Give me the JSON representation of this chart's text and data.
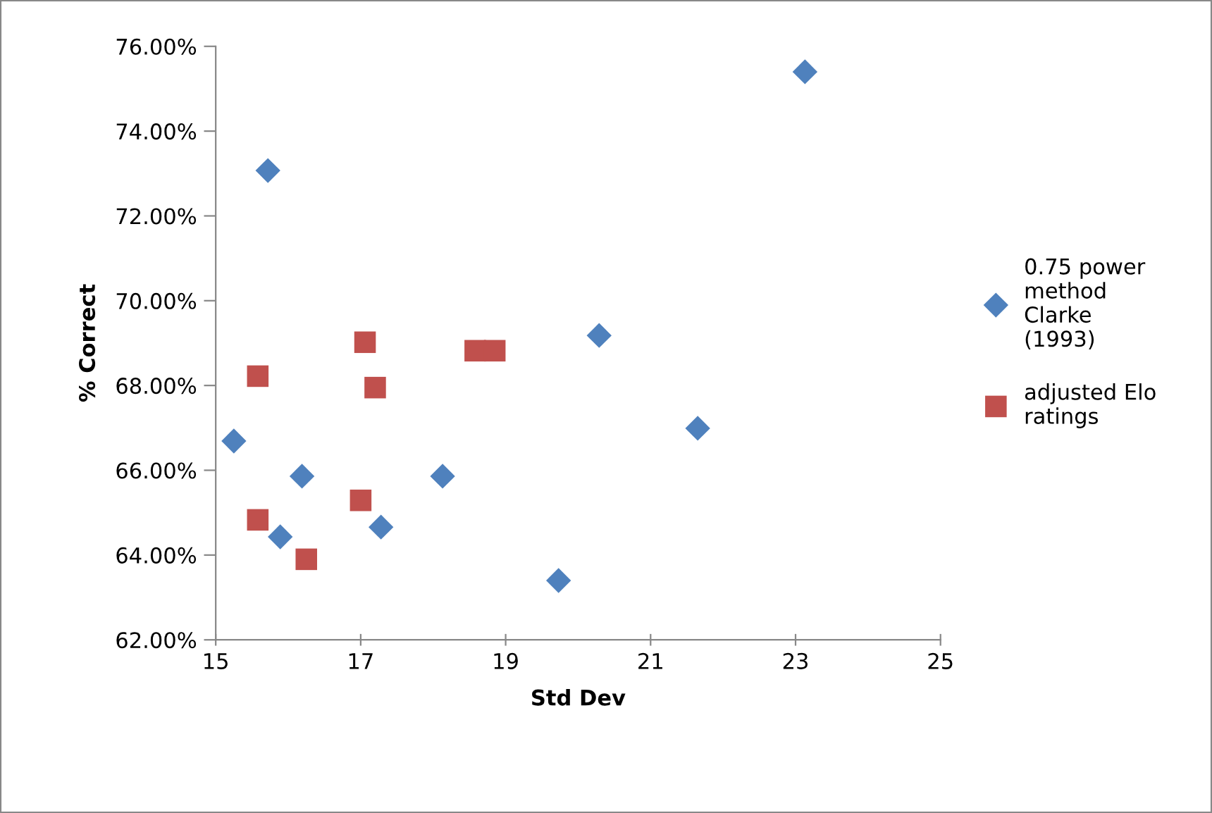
{
  "chart_data": {
    "type": "scatter",
    "xlabel": "Std Dev",
    "ylabel": "% Correct",
    "xlim": [
      15,
      25
    ],
    "xticks": [
      15,
      17,
      19,
      21,
      23,
      25
    ],
    "ylim": [
      62,
      76
    ],
    "yticks": [
      {
        "value": 62,
        "label": "62.00%"
      },
      {
        "value": 64,
        "label": "64.00%"
      },
      {
        "value": 66,
        "label": "66.00%"
      },
      {
        "value": 68,
        "label": "68.00%"
      },
      {
        "value": 70,
        "label": "70.00%"
      },
      {
        "value": 72,
        "label": "72.00%"
      },
      {
        "value": 74,
        "label": "74.00%"
      },
      {
        "value": 76,
        "label": "76.00%"
      }
    ],
    "grid": false,
    "legend": "right",
    "series": [
      {
        "name": "0.75 power method Clarke (1993)",
        "color": "#4f81bd",
        "marker": "diamond",
        "x": [
          23.13,
          15.72,
          15.25,
          16.19,
          15.89,
          17.28,
          18.13,
          19.73,
          20.29,
          21.65
        ],
        "values": [
          75.4,
          73.07,
          66.69,
          65.86,
          64.43,
          64.66,
          65.86,
          63.4,
          69.18,
          66.99
        ]
      },
      {
        "name": "adjusted Elo ratings",
        "color": "#c0504d",
        "marker": "square",
        "x": [
          15.58,
          15.58,
          16.25,
          17.06,
          17.2,
          17.0,
          18.58,
          18.85
        ],
        "values": [
          68.22,
          64.83,
          63.9,
          69.02,
          67.95,
          65.29,
          68.82,
          68.82
        ]
      }
    ]
  }
}
